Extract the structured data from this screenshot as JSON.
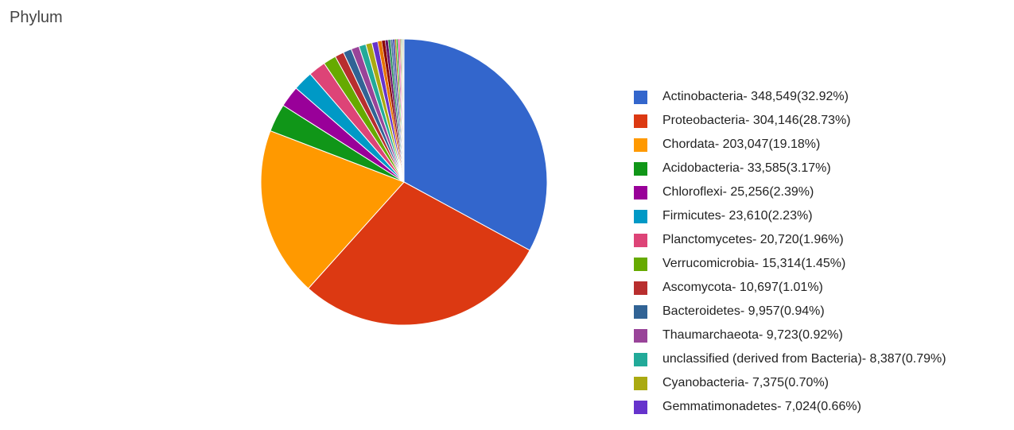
{
  "chart_data": {
    "type": "pie",
    "title": "Phylum",
    "legend_position": "right",
    "slices": [
      {
        "label": "Actinobacteria",
        "value": 348549,
        "value_text": "348,549",
        "percent_text": "32.92%",
        "color": "#3366cc"
      },
      {
        "label": "Proteobacteria",
        "value": 304146,
        "value_text": "304,146",
        "percent_text": "28.73%",
        "color": "#dc3912"
      },
      {
        "label": "Chordata",
        "value": 203047,
        "value_text": "203,047",
        "percent_text": "19.18%",
        "color": "#ff9900"
      },
      {
        "label": "Acidobacteria",
        "value": 33585,
        "value_text": "33,585",
        "percent_text": "3.17%",
        "color": "#109618"
      },
      {
        "label": "Chloroflexi",
        "value": 25256,
        "value_text": "25,256",
        "percent_text": "2.39%",
        "color": "#990099"
      },
      {
        "label": "Firmicutes",
        "value": 23610,
        "value_text": "23,610",
        "percent_text": "2.23%",
        "color": "#0099c6"
      },
      {
        "label": "Planctomycetes",
        "value": 20720,
        "value_text": "20,720",
        "percent_text": "1.96%",
        "color": "#dd4477"
      },
      {
        "label": "Verrucomicrobia",
        "value": 15314,
        "value_text": "15,314",
        "percent_text": "1.45%",
        "color": "#66aa00"
      },
      {
        "label": "Ascomycota",
        "value": 10697,
        "value_text": "10,697",
        "percent_text": "1.01%",
        "color": "#b82e2e"
      },
      {
        "label": "Bacteroidetes",
        "value": 9957,
        "value_text": "9,957",
        "percent_text": "0.94%",
        "color": "#316395"
      },
      {
        "label": "Thaumarchaeota",
        "value": 9723,
        "value_text": "9,723",
        "percent_text": "0.92%",
        "color": "#994499"
      },
      {
        "label": "unclassified (derived from Bacteria)",
        "value": 8387,
        "value_text": "8,387",
        "percent_text": "0.79%",
        "color": "#22aa99"
      },
      {
        "label": "Cyanobacteria",
        "value": 7375,
        "value_text": "7,375",
        "percent_text": "0.70%",
        "color": "#aaaa11"
      },
      {
        "label": "Gemmatimonadetes",
        "value": 7024,
        "value_text": "7,024",
        "percent_text": "0.66%",
        "color": "#6633cc"
      }
    ],
    "other_slices_colors": [
      "#e67300",
      "#8b0707",
      "#651067",
      "#329262",
      "#5574a6",
      "#3b3eac",
      "#b77322",
      "#16d620",
      "#b91383",
      "#f4359e",
      "#9c5935",
      "#a9c413",
      "#2a778d",
      "#668d1c",
      "#bea413",
      "#0c5922",
      "#743411"
    ]
  }
}
